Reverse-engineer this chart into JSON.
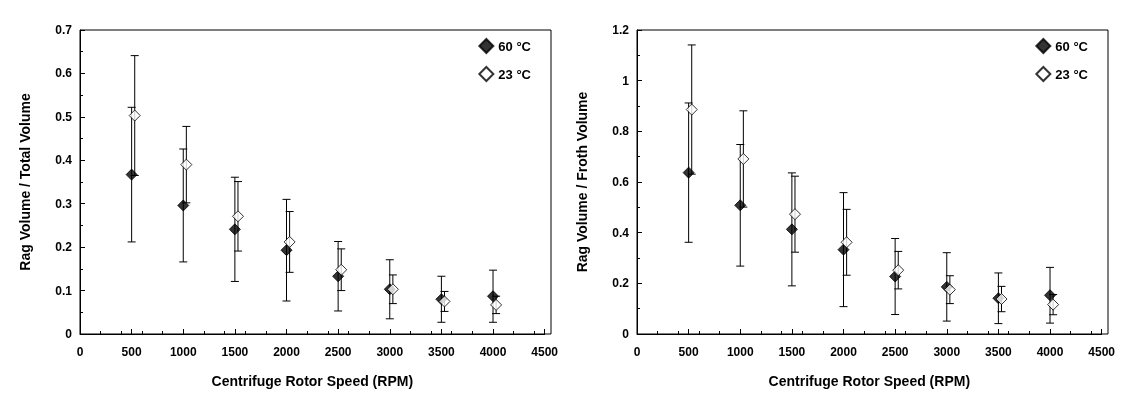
{
  "chart_data": [
    {
      "type": "scatter",
      "xlabel": "Centrifuge Rotor Speed (RPM)",
      "ylabel": "Rag Volume / Total Volume",
      "xlim": [
        0,
        4500
      ],
      "xticks": [
        0,
        500,
        1000,
        1500,
        2000,
        2500,
        3000,
        3500,
        4000,
        4500
      ],
      "ylim": [
        0,
        0.7
      ],
      "yticks": [
        0,
        0.1,
        0.2,
        0.3,
        0.4,
        0.5,
        0.6,
        0.7
      ],
      "grid": false,
      "legend": "top right",
      "marker": "diamond",
      "series": [
        {
          "name": "60 °C",
          "color": "#000000",
          "x": [
            500,
            1000,
            1500,
            2000,
            2500,
            3000,
            3500,
            4000
          ],
          "values": [
            0.367,
            0.296,
            0.241,
            0.193,
            0.133,
            0.103,
            0.08,
            0.087
          ],
          "errors": [
            0.155,
            0.13,
            0.12,
            0.117,
            0.08,
            0.068,
            0.053,
            0.06
          ]
        },
        {
          "name": "23 °C",
          "color": "#ffffff",
          "x": [
            530,
            1030,
            1530,
            2030,
            2530,
            3030,
            3530,
            4030
          ],
          "values": [
            0.503,
            0.39,
            0.271,
            0.212,
            0.148,
            0.103,
            0.075,
            0.067
          ],
          "errors": [
            0.138,
            0.088,
            0.08,
            0.07,
            0.048,
            0.033,
            0.023,
            0.02
          ]
        }
      ]
    },
    {
      "type": "scatter",
      "xlabel": "Centrifuge Rotor Speed (RPM)",
      "ylabel": "Rag Volume / Froth Volume",
      "xlim": [
        0,
        4500
      ],
      "xticks": [
        0,
        500,
        1000,
        1500,
        2000,
        2500,
        3000,
        3500,
        4000,
        4500
      ],
      "ylim": [
        0,
        1.2
      ],
      "yticks": [
        0,
        0.2,
        0.4,
        0.6,
        0.8,
        1,
        1.2
      ],
      "grid": false,
      "legend": "top right",
      "marker": "diamond",
      "series": [
        {
          "name": "60 °C",
          "color": "#000000",
          "x": [
            500,
            1000,
            1500,
            2000,
            2500,
            3000,
            3500,
            4000
          ],
          "values": [
            0.637,
            0.508,
            0.413,
            0.333,
            0.227,
            0.186,
            0.141,
            0.153
          ],
          "errors": [
            0.275,
            0.24,
            0.223,
            0.225,
            0.15,
            0.135,
            0.1,
            0.11
          ]
        },
        {
          "name": "23 °C",
          "color": "#ffffff",
          "x": [
            530,
            1030,
            1530,
            2030,
            2530,
            3030,
            3530,
            4030
          ],
          "values": [
            0.886,
            0.691,
            0.473,
            0.362,
            0.252,
            0.175,
            0.138,
            0.116
          ],
          "errors": [
            0.255,
            0.19,
            0.15,
            0.13,
            0.074,
            0.055,
            0.05,
            0.04
          ]
        }
      ]
    }
  ]
}
